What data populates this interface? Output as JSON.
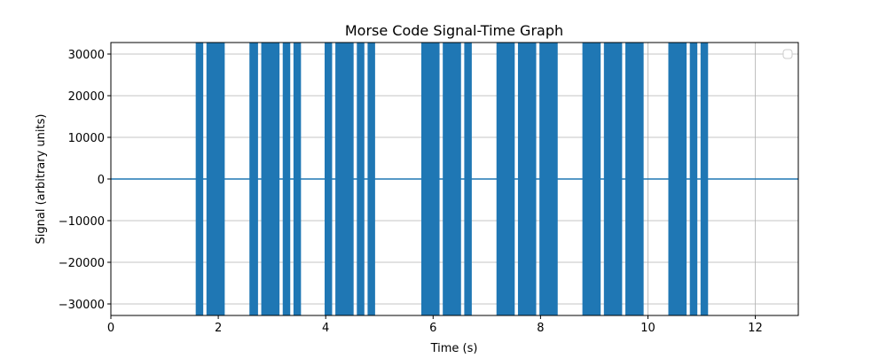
{
  "chart_data": {
    "type": "line",
    "title": "Morse Code Signal-Time Graph",
    "xlabel": "Time (s)",
    "ylabel": "Signal (arbitrary units)",
    "xlim": [
      0,
      12.8
    ],
    "ylim": [
      -32767,
      32767
    ],
    "x_ticks": [
      0,
      2,
      4,
      6,
      8,
      10,
      12
    ],
    "y_ticks": [
      -30000,
      -20000,
      -10000,
      0,
      10000,
      20000,
      30000
    ],
    "grid": true,
    "legend": {
      "placement": "upper right",
      "entries": []
    },
    "series": [
      {
        "color": "#1f77b4",
        "baseline": 0,
        "amplitude": 32767,
        "segments": [
          [
            1.58,
            1.72
          ],
          [
            1.78,
            2.12
          ],
          [
            2.58,
            2.74
          ],
          [
            2.8,
            3.14
          ],
          [
            3.2,
            3.34
          ],
          [
            3.4,
            3.54
          ],
          [
            3.98,
            4.12
          ],
          [
            4.18,
            4.52
          ],
          [
            4.58,
            4.72
          ],
          [
            4.78,
            4.92
          ],
          [
            5.78,
            6.12
          ],
          [
            6.18,
            6.52
          ],
          [
            6.58,
            6.72
          ],
          [
            7.18,
            7.52
          ],
          [
            7.58,
            7.92
          ],
          [
            7.98,
            8.32
          ],
          [
            8.78,
            9.12
          ],
          [
            9.18,
            9.52
          ],
          [
            9.58,
            9.92
          ],
          [
            10.38,
            10.72
          ],
          [
            10.78,
            10.92
          ],
          [
            10.98,
            11.12
          ]
        ]
      }
    ]
  }
}
